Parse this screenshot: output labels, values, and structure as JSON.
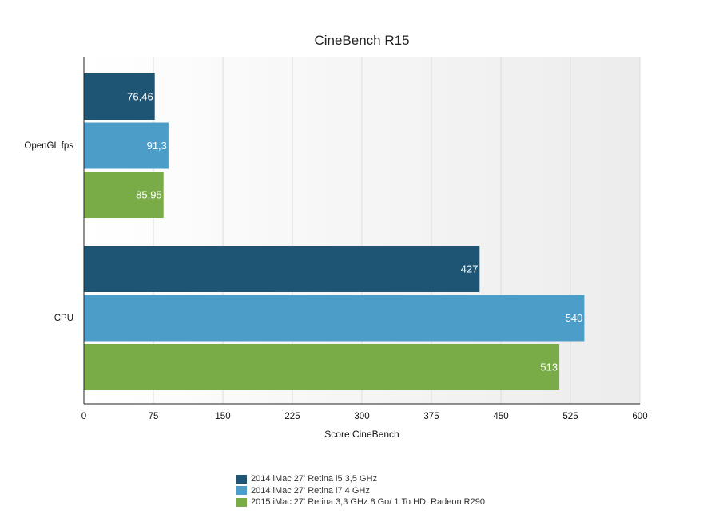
{
  "chart_data": {
    "type": "bar",
    "orientation": "horizontal",
    "title": "CineBench R15",
    "xlabel": "Score CineBench",
    "ylabel": "",
    "xlim": [
      0,
      600
    ],
    "x_ticks": [
      "0",
      "75",
      "150",
      "225",
      "300",
      "375",
      "450",
      "525",
      "600"
    ],
    "grid": true,
    "legend_position": "bottom",
    "categories": [
      "OpenGL fps",
      "CPU"
    ],
    "series": [
      {
        "name": "2014 iMac 27' Retina i5 3,5 GHz",
        "color": "#1e5575",
        "values": [
          76.46,
          427
        ],
        "labels": [
          "76,46",
          "427"
        ]
      },
      {
        "name": "2014 iMac 27' Retina i7 4 GHz",
        "color": "#4d9dc9",
        "values": [
          91.3,
          540
        ],
        "labels": [
          "91,3",
          "540"
        ]
      },
      {
        "name": "2015 iMac 27' Retina 3,3 GHz 8 Go/ 1 To HD, Radeon R290",
        "color": "#79ac47",
        "values": [
          85.95,
          513
        ],
        "labels": [
          "85,95",
          "513"
        ]
      }
    ]
  }
}
